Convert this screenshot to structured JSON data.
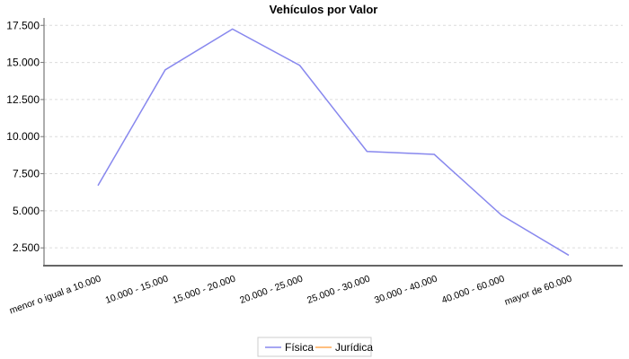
{
  "chart_data": {
    "type": "line",
    "title": "Vehículos por Valor",
    "xlabel": "",
    "ylabel": "",
    "categories": [
      "menor o igual a 10.000",
      "10.000 - 15.000",
      "15.000 - 20.000",
      "20.000 - 25.000",
      "25.000 - 30.000",
      "30.000 - 40.000",
      "40.000 - 60.000",
      "mayor de 60.000"
    ],
    "series": [
      {
        "name": "Física",
        "color": "#8888ee",
        "values": [
          6700,
          14500,
          17250,
          14800,
          9000,
          8800,
          4700,
          2000
        ]
      },
      {
        "name": "Jurídica",
        "color": "#ffaa55",
        "values": []
      }
    ],
    "yticks": [
      {
        "value": 2500,
        "label": "2.500"
      },
      {
        "value": 5000,
        "label": "5.000"
      },
      {
        "value": 7500,
        "label": "7.500"
      },
      {
        "value": 10000,
        "label": "10.000"
      },
      {
        "value": 12500,
        "label": "12.500"
      },
      {
        "value": 15000,
        "label": "15.000"
      },
      {
        "value": 17500,
        "label": "17.500"
      }
    ],
    "ylim": [
      1300,
      18000
    ],
    "grid": "horizontal-dashed",
    "legend_position": "bottom",
    "x_label_rotation_deg": -20,
    "colors": {
      "grid": "#dcdcdc",
      "axis": "#777777",
      "legend_text": "#400080",
      "title": "#000000",
      "background": "#ffffff"
    }
  }
}
